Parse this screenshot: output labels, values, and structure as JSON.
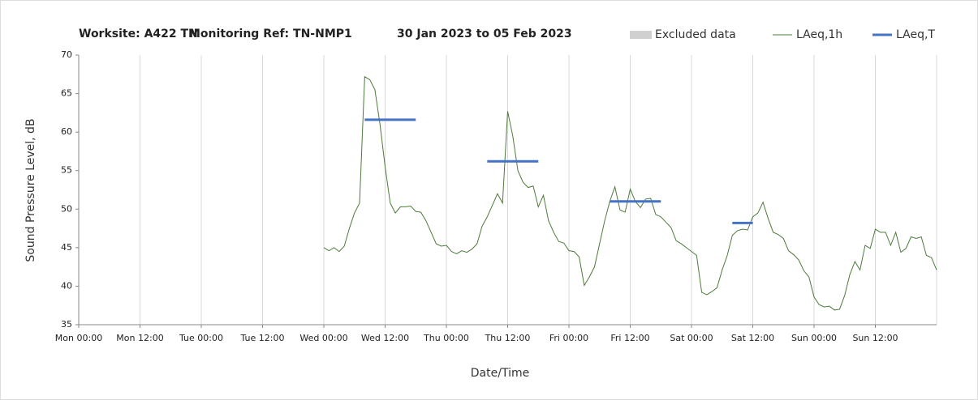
{
  "chart_data": {
    "type": "line",
    "title": [
      "Worksite: A422 TN",
      "Monitoring Ref: TN-NMP1",
      "30 Jan 2023 to 05 Feb 2023"
    ],
    "x_label": "Date/Time",
    "y_label": "Sound Pressure Level, dB",
    "excluded": {
      "name": "Excluded data",
      "color": "#d0d0d0"
    },
    "xlim": [
      0,
      168
    ],
    "ylim": [
      35,
      70
    ],
    "xticks": [
      {
        "value": 0,
        "label": "Mon 00:00"
      },
      {
        "value": 12,
        "label": "Mon 12:00"
      },
      {
        "value": 24,
        "label": "Tue 00:00"
      },
      {
        "value": 36,
        "label": "Tue 12:00"
      },
      {
        "value": 48,
        "label": "Wed 00:00"
      },
      {
        "value": 60,
        "label": "Wed 12:00"
      },
      {
        "value": 72,
        "label": "Thu 00:00"
      },
      {
        "value": 84,
        "label": "Thu 12:00"
      },
      {
        "value": 96,
        "label": "Fri 00:00"
      },
      {
        "value": 108,
        "label": "Fri 12:00"
      },
      {
        "value": 120,
        "label": "Sat 00:00"
      },
      {
        "value": 132,
        "label": "Sat 12:00"
      },
      {
        "value": 144,
        "label": "Sun 00:00"
      },
      {
        "value": 156,
        "label": "Sun 12:00"
      }
    ],
    "yticks": [
      35,
      40,
      45,
      50,
      55,
      60,
      65,
      70
    ],
    "grid": "x",
    "series": [
      {
        "name": "LAeq,1h",
        "color": "#4e7a3a",
        "width": 1,
        "x": [
          48,
          49,
          50,
          51,
          52,
          53,
          54,
          55,
          56,
          57,
          58,
          59,
          60,
          61,
          62,
          63,
          64,
          65,
          66,
          67,
          68,
          69,
          70,
          71,
          72,
          73,
          74,
          75,
          76,
          77,
          78,
          79,
          80,
          81,
          82,
          83,
          84,
          85,
          86,
          87,
          88,
          89,
          90,
          91,
          92,
          93,
          94,
          95,
          96,
          97,
          98,
          99,
          100,
          101,
          102,
          103,
          104,
          105,
          106,
          107,
          108,
          109,
          110,
          111,
          112,
          113,
          114,
          115,
          116,
          117,
          118,
          119,
          120,
          121,
          122,
          123,
          124,
          125,
          126,
          127,
          128,
          129,
          130,
          131,
          132,
          133,
          134,
          135,
          136,
          137,
          138,
          139,
          140,
          141,
          142,
          143,
          144,
          145,
          146,
          147,
          148,
          149,
          150,
          151,
          152,
          153,
          154,
          155,
          156,
          157,
          158,
          159,
          160,
          161,
          162,
          163,
          164,
          165,
          166,
          167,
          168
        ],
        "values": [
          45,
          44.6,
          45,
          44.5,
          45.2,
          47.5,
          49.5,
          50.8,
          67.2,
          66.8,
          65.5,
          61,
          55.5,
          50.8,
          49.5,
          50.3,
          50.3,
          50.4,
          49.7,
          49.6,
          48.5,
          47,
          45.5,
          45.2,
          45.3,
          44.5,
          44.2,
          44.6,
          44.4,
          44.8,
          45.5,
          47.8,
          49,
          50.5,
          52,
          50.8,
          62.7,
          59.5,
          55,
          53.5,
          52.8,
          53,
          50.3,
          51.8,
          48.5,
          47,
          45.8,
          45.6,
          44.6,
          44.5,
          43.8,
          40.1,
          41.2,
          42.5,
          45.5,
          48.5,
          51,
          52.9,
          49.9,
          49.6,
          52.6,
          51,
          50.2,
          51.3,
          51.4,
          49.3,
          49,
          48.3,
          47.6,
          45.9,
          45.5,
          45,
          44.5,
          44,
          39.2,
          38.9,
          39.3,
          39.8,
          42.1,
          44,
          46.6,
          47.2,
          47.4,
          47.3,
          49,
          49.5,
          50.9,
          48.8,
          47,
          46.7,
          46.2,
          44.6,
          44.1,
          43.4,
          42,
          41.2,
          38.6,
          37.6,
          37.3,
          37.4,
          36.9,
          37,
          38.8,
          41.5,
          43.2,
          42.1,
          45.3,
          44.9,
          47.4,
          47,
          47,
          45.3,
          47,
          44.4,
          44.9,
          46.4,
          46.2,
          46.4,
          44,
          43.7,
          42.1
        ]
      },
      {
        "name": "LAeq,T",
        "color": "#4472c4",
        "width": 3,
        "x": [
          56,
          66,
          66,
          80,
          90,
          90,
          104,
          114,
          114,
          128,
          132
        ],
        "values": [
          61.6,
          61.6,
          null,
          56.2,
          56.2,
          null,
          51,
          51,
          null,
          48.2,
          48.2
        ]
      }
    ]
  }
}
